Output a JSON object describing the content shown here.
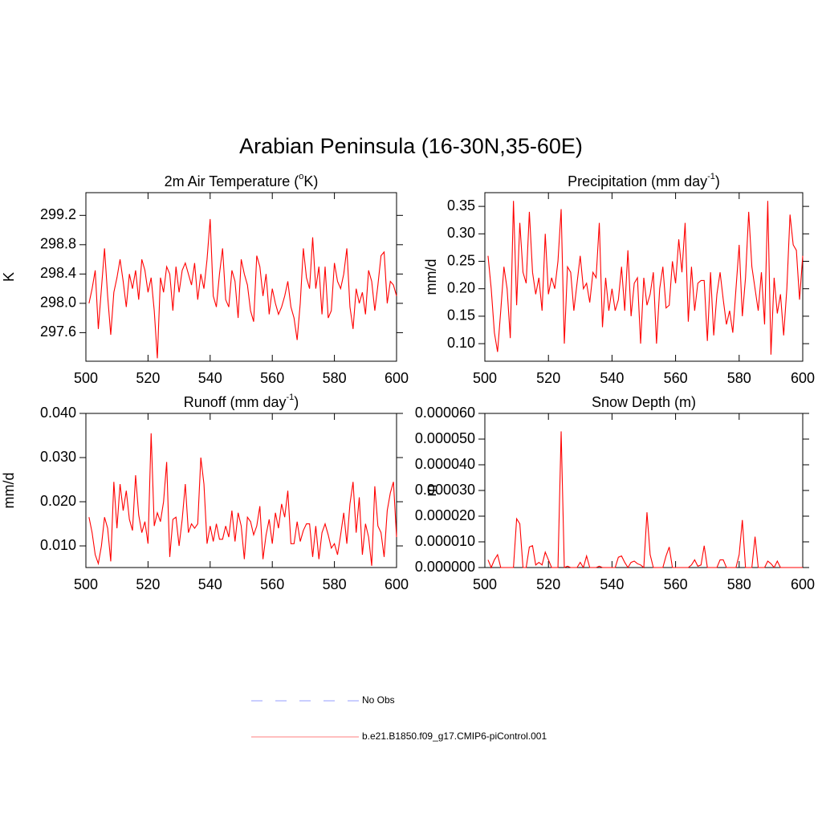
{
  "title": "Arabian Peninsula (16-30N,35-60E)",
  "legend": [
    {
      "name": "No Obs",
      "color": "#aab0ff",
      "dashed": true
    },
    {
      "name": "b.e21.B1850.f09_g17.CMIP6-piControl.001",
      "color": "#ff9999",
      "dashed": false
    }
  ],
  "chart_data": [
    {
      "type": "line",
      "title": [
        "2m Air Temperature (",
        "o",
        "K)"
      ],
      "y_label": "K",
      "xlim": [
        500,
        600
      ],
      "xticks": [
        500,
        520,
        540,
        560,
        580,
        600
      ],
      "ylim": [
        297.21,
        299.51
      ],
      "yticks": [
        297.6,
        {
          "value": 298,
          "label": "298.0"
        },
        298.4,
        298.8,
        299.2
      ],
      "x": [
        501,
        502,
        503,
        504,
        505,
        506,
        507,
        508,
        509,
        510,
        511,
        512,
        513,
        514,
        515,
        516,
        517,
        518,
        519,
        520,
        521,
        522,
        523,
        524,
        525,
        526,
        527,
        528,
        529,
        530,
        531,
        532,
        533,
        534,
        535,
        536,
        537,
        538,
        539,
        540,
        541,
        542,
        543,
        544,
        545,
        546,
        547,
        548,
        549,
        550,
        551,
        552,
        553,
        554,
        555,
        556,
        557,
        558,
        559,
        560,
        561,
        562,
        563,
        564,
        565,
        566,
        567,
        568,
        569,
        570,
        571,
        572,
        573,
        574,
        575,
        576,
        577,
        578,
        579,
        580,
        581,
        582,
        583,
        584,
        585,
        586,
        587,
        588,
        589,
        590,
        591,
        592,
        593,
        594,
        595,
        596,
        597,
        598,
        599,
        600
      ],
      "series": [
        {
          "color": "#ff0000",
          "values": [
            298.0,
            298.2,
            298.45,
            297.65,
            298.2,
            298.75,
            298.1,
            297.57,
            298.15,
            298.35,
            298.6,
            298.3,
            297.95,
            298.4,
            298.2,
            298.45,
            298.05,
            298.6,
            298.45,
            298.15,
            298.35,
            297.9,
            297.25,
            298.35,
            298.15,
            298.5,
            298.4,
            297.9,
            298.5,
            298.15,
            298.45,
            298.55,
            298.4,
            298.25,
            298.55,
            298.05,
            298.4,
            298.2,
            298.6,
            299.15,
            298.1,
            297.95,
            298.4,
            298.75,
            298.05,
            297.95,
            298.45,
            298.3,
            297.8,
            298.6,
            298.4,
            298.25,
            297.9,
            297.75,
            298.65,
            298.5,
            298.1,
            298.4,
            297.85,
            298.2,
            298.0,
            297.85,
            297.95,
            298.1,
            298.3,
            297.95,
            297.8,
            297.5,
            298.0,
            298.75,
            298.35,
            298.2,
            298.9,
            298.2,
            298.5,
            297.85,
            298.5,
            297.8,
            297.9,
            298.55,
            298.3,
            298.2,
            298.4,
            298.75,
            297.95,
            297.65,
            298.2,
            298.0,
            298.15,
            297.85,
            298.45,
            298.3,
            297.9,
            298.25,
            298.65,
            298.7,
            298.0,
            298.3,
            298.25,
            298.1
          ]
        }
      ]
    },
    {
      "type": "line",
      "title": [
        "Precipitation (mm day",
        "-1",
        ")"
      ],
      "y_label": "mm/d",
      "xlim": [
        500,
        600
      ],
      "xticks": [
        500,
        520,
        540,
        560,
        580,
        600
      ],
      "ylim": [
        0.068,
        0.375
      ],
      "yticks": [
        {
          "value": 0.1,
          "label": "0.10"
        },
        0.15,
        {
          "value": 0.2,
          "label": "0.20"
        },
        0.25,
        {
          "value": 0.3,
          "label": "0.30"
        },
        0.35
      ],
      "x": [
        501,
        502,
        503,
        504,
        505,
        506,
        507,
        508,
        509,
        510,
        511,
        512,
        513,
        514,
        515,
        516,
        517,
        518,
        519,
        520,
        521,
        522,
        523,
        524,
        525,
        526,
        527,
        528,
        529,
        530,
        531,
        532,
        533,
        534,
        535,
        536,
        537,
        538,
        539,
        540,
        541,
        542,
        543,
        544,
        545,
        546,
        547,
        548,
        549,
        550,
        551,
        552,
        553,
        554,
        555,
        556,
        557,
        558,
        559,
        560,
        561,
        562,
        563,
        564,
        565,
        566,
        567,
        568,
        569,
        570,
        571,
        572,
        573,
        574,
        575,
        576,
        577,
        578,
        579,
        580,
        581,
        582,
        583,
        584,
        585,
        586,
        587,
        588,
        589,
        590,
        591,
        592,
        593,
        594,
        595,
        596,
        597,
        598,
        599,
        600
      ],
      "series": [
        {
          "color": "#ff0000",
          "values": [
            0.26,
            0.2,
            0.12,
            0.085,
            0.16,
            0.24,
            0.2,
            0.11,
            0.36,
            0.17,
            0.32,
            0.23,
            0.21,
            0.34,
            0.23,
            0.19,
            0.22,
            0.16,
            0.3,
            0.19,
            0.22,
            0.2,
            0.25,
            0.345,
            0.1,
            0.24,
            0.23,
            0.16,
            0.21,
            0.26,
            0.2,
            0.21,
            0.175,
            0.23,
            0.22,
            0.32,
            0.13,
            0.22,
            0.16,
            0.2,
            0.16,
            0.18,
            0.24,
            0.16,
            0.27,
            0.15,
            0.21,
            0.22,
            0.1,
            0.22,
            0.17,
            0.19,
            0.23,
            0.1,
            0.2,
            0.24,
            0.165,
            0.17,
            0.25,
            0.21,
            0.29,
            0.23,
            0.32,
            0.14,
            0.24,
            0.16,
            0.21,
            0.215,
            0.215,
            0.105,
            0.23,
            0.115,
            0.19,
            0.23,
            0.18,
            0.135,
            0.16,
            0.12,
            0.2,
            0.28,
            0.15,
            0.22,
            0.34,
            0.24,
            0.2,
            0.16,
            0.23,
            0.135,
            0.36,
            0.08,
            0.22,
            0.155,
            0.19,
            0.115,
            0.2,
            0.335,
            0.28,
            0.27,
            0.18,
            0.26
          ]
        }
      ]
    },
    {
      "type": "line",
      "title": [
        "Runoff (mm day",
        "-1",
        ")"
      ],
      "y_label": "mm/d",
      "xlim": [
        500,
        600
      ],
      "xticks": [
        500,
        520,
        540,
        560,
        580,
        600
      ],
      "ylim": [
        0.0051,
        0.04
      ],
      "yticks": [
        {
          "value": 0.01,
          "label": "0.010"
        },
        {
          "value": 0.02,
          "label": "0.020"
        },
        {
          "value": 0.03,
          "label": "0.030"
        },
        {
          "value": 0.04,
          "label": "0.040"
        }
      ],
      "x": [
        501,
        502,
        503,
        504,
        505,
        506,
        507,
        508,
        509,
        510,
        511,
        512,
        513,
        514,
        515,
        516,
        517,
        518,
        519,
        520,
        521,
        522,
        523,
        524,
        525,
        526,
        527,
        528,
        529,
        530,
        531,
        532,
        533,
        534,
        535,
        536,
        537,
        538,
        539,
        540,
        541,
        542,
        543,
        544,
        545,
        546,
        547,
        548,
        549,
        550,
        551,
        552,
        553,
        554,
        555,
        556,
        557,
        558,
        559,
        560,
        561,
        562,
        563,
        564,
        565,
        566,
        567,
        568,
        569,
        570,
        571,
        572,
        573,
        574,
        575,
        576,
        577,
        578,
        579,
        580,
        581,
        582,
        583,
        584,
        585,
        586,
        587,
        588,
        589,
        590,
        591,
        592,
        593,
        594,
        595,
        596,
        597,
        598,
        599,
        600
      ],
      "series": [
        {
          "color": "#ff0000",
          "values": [
            0.0165,
            0.013,
            0.008,
            0.006,
            0.01,
            0.0165,
            0.014,
            0.0065,
            0.0245,
            0.014,
            0.024,
            0.018,
            0.0225,
            0.016,
            0.0135,
            0.026,
            0.017,
            0.013,
            0.0155,
            0.0105,
            0.0355,
            0.0145,
            0.0175,
            0.0155,
            0.02,
            0.029,
            0.0075,
            0.016,
            0.0165,
            0.01,
            0.016,
            0.024,
            0.013,
            0.015,
            0.014,
            0.015,
            0.03,
            0.024,
            0.0105,
            0.0145,
            0.011,
            0.015,
            0.0115,
            0.0115,
            0.0145,
            0.012,
            0.018,
            0.011,
            0.0175,
            0.0145,
            0.007,
            0.0165,
            0.0155,
            0.0125,
            0.0145,
            0.019,
            0.007,
            0.0125,
            0.016,
            0.0105,
            0.0175,
            0.014,
            0.0195,
            0.0165,
            0.0225,
            0.0105,
            0.0105,
            0.0155,
            0.011,
            0.0135,
            0.015,
            0.015,
            0.0075,
            0.0145,
            0.007,
            0.013,
            0.015,
            0.0125,
            0.0095,
            0.0105,
            0.008,
            0.0125,
            0.0175,
            0.0105,
            0.0195,
            0.0245,
            0.013,
            0.021,
            0.008,
            0.015,
            0.012,
            0.0055,
            0.0235,
            0.0145,
            0.013,
            0.0075,
            0.018,
            0.022,
            0.0245,
            0.012
          ]
        }
      ]
    },
    {
      "type": "line",
      "title": "Snow Depth (m)",
      "y_label": "m",
      "xlim": [
        500,
        600
      ],
      "xticks": [
        500,
        520,
        540,
        560,
        580,
        600
      ],
      "ylim": [
        0,
        6e-05
      ],
      "yticks": [
        {
          "value": 0,
          "label": "0.000000"
        },
        {
          "value": 1e-05,
          "label": "0.000010"
        },
        {
          "value": 2e-05,
          "label": "0.000020"
        },
        {
          "value": 3e-05,
          "label": "0.000030"
        },
        {
          "value": 4e-05,
          "label": "0.000040"
        },
        {
          "value": 5e-05,
          "label": "0.000050"
        },
        {
          "value": 6e-05,
          "label": "0.000060"
        }
      ],
      "x": [
        501,
        502,
        503,
        504,
        505,
        506,
        507,
        508,
        509,
        510,
        511,
        512,
        513,
        514,
        515,
        516,
        517,
        518,
        519,
        520,
        521,
        522,
        523,
        524,
        525,
        526,
        527,
        528,
        529,
        530,
        531,
        532,
        533,
        534,
        535,
        536,
        537,
        538,
        539,
        540,
        541,
        542,
        543,
        544,
        545,
        546,
        547,
        548,
        549,
        550,
        551,
        552,
        553,
        554,
        555,
        556,
        557,
        558,
        559,
        560,
        561,
        562,
        563,
        564,
        565,
        566,
        567,
        568,
        569,
        570,
        571,
        572,
        573,
        574,
        575,
        576,
        577,
        578,
        579,
        580,
        581,
        582,
        583,
        584,
        585,
        586,
        587,
        588,
        589,
        590,
        591,
        592,
        593,
        594,
        595,
        596,
        597,
        598,
        599,
        600
      ],
      "series": [
        {
          "color": "#ff0000",
          "values": [
            3e-06,
            0,
            3e-06,
            5e-06,
            0,
            0,
            0,
            0,
            0,
            1.9e-05,
            1.7e-05,
            0,
            0,
            8e-06,
            8.5e-06,
            1e-06,
            2e-06,
            1e-06,
            6e-06,
            3e-06,
            0,
            0,
            0,
            5.3e-05,
            0,
            5e-07,
            0,
            0,
            0,
            2e-06,
            0,
            4.5e-06,
            0,
            0,
            0,
            5e-07,
            0,
            0,
            0,
            0,
            0,
            4e-06,
            4.5e-06,
            2e-06,
            0,
            2e-06,
            2.5e-06,
            1.5e-06,
            1e-06,
            0,
            2.15e-05,
            5e-06,
            0,
            0,
            0,
            0,
            4.5e-06,
            8e-06,
            0,
            0,
            0,
            0,
            0,
            0,
            1e-06,
            3e-06,
            5e-07,
            1e-06,
            8.5e-06,
            0,
            0,
            0,
            0,
            3e-06,
            3e-06,
            0,
            0,
            0,
            0,
            5e-06,
            1.85e-05,
            0,
            0,
            0,
            1.2e-05,
            0,
            0,
            0,
            2.5e-06,
            1.5e-06,
            0,
            2.5e-06,
            0,
            0,
            0,
            0,
            0,
            0,
            0,
            0
          ]
        }
      ]
    }
  ]
}
